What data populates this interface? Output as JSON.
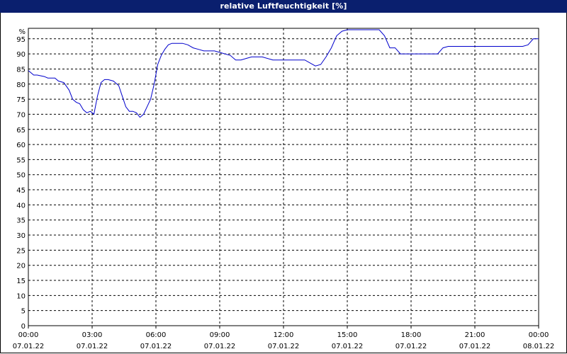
{
  "window": {
    "title": "relative Luftfeuchtigkeit [%]"
  },
  "chart_data": {
    "type": "line",
    "title": "relative Luftfeuchtigkeit [%]",
    "ylabel": "%",
    "xlabel": "",
    "ylim": [
      0,
      95
    ],
    "y_ticks": [
      0,
      5,
      10,
      15,
      20,
      25,
      30,
      35,
      40,
      45,
      50,
      55,
      60,
      65,
      70,
      75,
      80,
      85,
      90,
      95
    ],
    "xlim": [
      "07.01.22 00:00",
      "08.01.22 00:00"
    ],
    "x_ticks": [
      {
        "time": "00:00",
        "date": "07.01.22"
      },
      {
        "time": "03:00",
        "date": "07.01.22"
      },
      {
        "time": "06:00",
        "date": "07.01.22"
      },
      {
        "time": "09:00",
        "date": "07.01.22"
      },
      {
        "time": "12:00",
        "date": "07.01.22"
      },
      {
        "time": "15:00",
        "date": "07.01.22"
      },
      {
        "time": "18:00",
        "date": "07.01.22"
      },
      {
        "time": "21:00",
        "date": "07.01.22"
      },
      {
        "time": "00:00",
        "date": "08.01.22"
      }
    ],
    "grid": true,
    "line_color": "#0000cc",
    "series": [
      {
        "x": [
          "07.01.22 00:00",
          "07.01.22 00:15",
          "07.01.22 00:25",
          "07.01.22 00:45",
          "07.01.22 00:55",
          "07.01.22 01:15",
          "07.01.22 01:25",
          "07.01.22 01:40",
          "07.01.22 01:55",
          "07.01.22 02:05",
          "07.01.22 02:15",
          "07.01.22 02:25",
          "07.01.22 02:35",
          "07.01.22 02:45",
          "07.01.22 02:55",
          "07.01.22 03:05",
          "07.01.22 03:15",
          "07.01.22 03:25",
          "07.01.22 03:35",
          "07.01.22 03:45",
          "07.01.22 04:00",
          "07.01.22 04:15",
          "07.01.22 04:25",
          "07.01.22 04:35",
          "07.01.22 04:45",
          "07.01.22 04:55",
          "07.01.22 05:05",
          "07.01.22 05:15",
          "07.01.22 05:25",
          "07.01.22 05:35",
          "07.01.22 05:45",
          "07.01.22 05:55",
          "07.01.22 06:05",
          "07.01.22 06:15",
          "07.01.22 06:25",
          "07.01.22 06:35",
          "07.01.22 06:45",
          "07.01.22 06:55",
          "07.01.22 07:05",
          "07.01.22 07:15",
          "07.01.22 07:30",
          "07.01.22 07:45",
          "07.01.22 08:00",
          "07.01.22 08:15",
          "07.01.22 08:30",
          "07.01.22 08:45",
          "07.01.22 09:00",
          "07.01.22 09:30",
          "07.01.22 09:45",
          "07.01.22 10:00",
          "07.01.22 10:15",
          "07.01.22 10:30",
          "07.01.22 10:45",
          "07.01.22 11:00",
          "07.01.22 11:30",
          "07.01.22 11:45",
          "07.01.22 11:55",
          "07.01.22 12:30",
          "07.01.22 12:45",
          "07.01.22 13:00",
          "07.01.22 13:30",
          "07.01.22 13:45",
          "07.01.22 14:00",
          "07.01.22 14:15",
          "07.01.22 14:30",
          "07.01.22 14:45",
          "07.01.22 15:00",
          "07.01.22 15:15",
          "07.01.22 15:30",
          "07.01.22 15:45",
          "07.01.22 16:00",
          "07.01.22 16:15",
          "07.01.22 16:30",
          "07.01.22 16:45",
          "07.01.22 17:00",
          "07.01.22 17:15",
          "07.01.22 17:30",
          "07.01.22 17:45",
          "07.01.22 18:00",
          "07.01.22 18:30",
          "07.01.22 19:00",
          "07.01.22 19:15",
          "07.01.22 19:30",
          "07.01.22 19:45",
          "07.01.22 20:00",
          "07.01.22 20:30",
          "07.01.22 21:00",
          "07.01.22 21:30",
          "07.01.22 22:00",
          "07.01.22 22:30",
          "07.01.22 23:00",
          "07.01.22 23:15",
          "07.01.22 23:30",
          "07.01.22 23:45",
          "08.01.22 00:00"
        ],
        "y": [
          84.5,
          83.0,
          83.0,
          82.5,
          82.0,
          82.0,
          81.0,
          80.5,
          78.0,
          75.0,
          74.0,
          73.5,
          71.5,
          70.5,
          71.0,
          70.0,
          76.0,
          80.5,
          81.5,
          81.5,
          81.0,
          79.5,
          76.0,
          72.5,
          71.0,
          71.0,
          70.5,
          69.0,
          70.0,
          72.5,
          75.0,
          80.0,
          86.5,
          89.5,
          91.5,
          93.0,
          93.5,
          93.5,
          93.5,
          93.5,
          93.0,
          92.0,
          91.5,
          91.0,
          91.0,
          91.0,
          90.5,
          89.5,
          88.0,
          88.0,
          88.5,
          89.0,
          89.0,
          89.0,
          88.0,
          88.0,
          88.0,
          88.0,
          88.0,
          88.0,
          86.0,
          86.5,
          89.0,
          92.0,
          96.0,
          97.5,
          98.0,
          98.0,
          98.0,
          98.0,
          98.0,
          98.0,
          98.0,
          96.0,
          92.0,
          92.0,
          90.0,
          90.0,
          90.0,
          90.0,
          90.0,
          90.0,
          92.0,
          92.5,
          92.5,
          92.5,
          92.5,
          92.5,
          92.5,
          92.5,
          92.5,
          92.5,
          93.0,
          95.0,
          95.0
        ]
      }
    ]
  }
}
